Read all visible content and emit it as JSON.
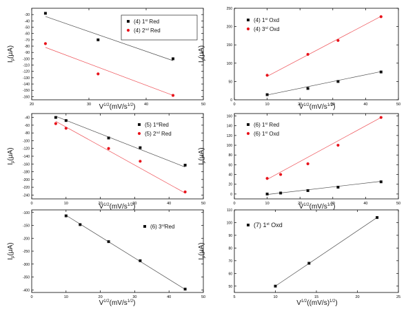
{
  "colors": {
    "series_black": "#111111",
    "series_red": "#e8141c",
    "axis": "#000000"
  },
  "chart_data": [
    {
      "type": "scatter",
      "xlabel": "V1/2(mV/s1/2)",
      "ylabel": "Ip(μA)",
      "xlabel_parts": [
        "V",
        "1/2",
        "(mV/s",
        "1/2",
        ")"
      ],
      "ylabel_parts": [
        "I",
        "p",
        "(μA)"
      ],
      "xlim": [
        20,
        50
      ],
      "ylim": [
        -165,
        -20
      ],
      "xticks": [
        20,
        30,
        40,
        50
      ],
      "yticks": [
        -30,
        -40,
        -50,
        -60,
        -70,
        -80,
        -90,
        -100,
        -110,
        -120,
        -130,
        -140,
        -150,
        -160
      ],
      "legend_position": "top-right",
      "series": [
        {
          "name": "(4) 1st Red",
          "legend_parts": [
            "(4) 1",
            "st",
            " Red"
          ],
          "marker": "square",
          "color": "#111111",
          "x": [
            22.4,
            31.6,
            44.7
          ],
          "y": [
            -28,
            -70,
            -100
          ],
          "fit": [
            -33,
            -103
          ]
        },
        {
          "name": "(4) 2nd Red",
          "legend_parts": [
            "(4) 2",
            "nd",
            " Red"
          ],
          "marker": "circle",
          "color": "#e8141c",
          "x": [
            22.4,
            31.6,
            44.7
          ],
          "y": [
            -76,
            -124,
            -158
          ],
          "fit": [
            -82,
            -158
          ]
        }
      ]
    },
    {
      "type": "scatter",
      "xlabel": "V1/2(mV/s1/2)",
      "ylabel": "Ip(μA)",
      "xlabel_parts": [
        "V",
        "1/2",
        "(mV/s",
        "1/2",
        ")"
      ],
      "ylabel_parts": [
        "I",
        "p",
        "(μA)"
      ],
      "xlim": [
        0,
        50
      ],
      "ylim": [
        0,
        250
      ],
      "xticks": [
        0,
        10,
        20,
        30,
        40,
        50
      ],
      "yticks": [
        0,
        50,
        100,
        150,
        200,
        250
      ],
      "legend_position": "top-left",
      "series": [
        {
          "name": "(4) 1st Oxd",
          "legend_parts": [
            "(4)  1",
            "st",
            " Oxd"
          ],
          "marker": "square",
          "color": "#111111",
          "x": [
            10,
            22.4,
            31.6,
            44.7
          ],
          "y": [
            14,
            31,
            50,
            76
          ],
          "fit": [
            13,
            77
          ]
        },
        {
          "name": "(4) 3rd Oxd",
          "legend_parts": [
            "(4)  3",
            "rd",
            " Oxd"
          ],
          "marker": "circle",
          "color": "#e8141c",
          "x": [
            10,
            22.4,
            31.6,
            44.7
          ],
          "y": [
            67,
            124,
            162,
            227
          ],
          "fit": [
            64,
            228
          ]
        }
      ]
    },
    {
      "type": "scatter",
      "xlabel": "V1/2(mV/s1/2)",
      "ylabel": "Ip(μA)",
      "xlabel_parts": [
        "V",
        "1/2",
        "(mV/s",
        "1/2",
        ")"
      ],
      "ylabel_parts": [
        "I",
        "p",
        "(μA)"
      ],
      "xlim": [
        0,
        50
      ],
      "ylim": [
        -250,
        -30
      ],
      "xticks": [
        0,
        10,
        20,
        30,
        40,
        50
      ],
      "yticks": [
        -40,
        -60,
        -80,
        -100,
        -120,
        -140,
        -160,
        -180,
        -200,
        -220,
        -240
      ],
      "legend_position": "top-right",
      "series": [
        {
          "name": "(5) 1st Red",
          "legend_parts": [
            "(5) 1",
            "st",
            "Red"
          ],
          "marker": "square",
          "color": "#111111",
          "x": [
            7,
            10,
            22.4,
            31.6,
            44.7
          ],
          "y": [
            -40,
            -48,
            -93,
            -118,
            -163
          ],
          "fit": [
            -37,
            -168
          ]
        },
        {
          "name": "(5) 2nd Red",
          "legend_parts": [
            "(5) 2",
            "nd",
            " Red"
          ],
          "marker": "circle",
          "color": "#e8141c",
          "x": [
            7,
            10,
            22.4,
            31.6,
            44.7
          ],
          "y": [
            -56,
            -68,
            -120,
            -153,
            -232
          ],
          "fit": [
            -50,
            -235
          ]
        }
      ]
    },
    {
      "type": "scatter",
      "xlabel": "V1/2(mV/s1/2)",
      "ylabel": "Ip(μA)",
      "xlabel_parts": [
        "V",
        "1/2",
        "(mV/s",
        "1/2",
        ")"
      ],
      "ylabel_parts": [
        "I",
        "p",
        "(μA)"
      ],
      "xlim": [
        0,
        50
      ],
      "ylim": [
        -10,
        165
      ],
      "xticks": [
        0,
        10,
        20,
        30,
        40,
        50
      ],
      "yticks": [
        0,
        20,
        40,
        60,
        80,
        100,
        120,
        140,
        160
      ],
      "legend_position": "top-left",
      "series": [
        {
          "name": "(6) 1st Red",
          "legend_parts": [
            "(6) 1",
            "st",
            " Red"
          ],
          "marker": "square",
          "color": "#111111",
          "x": [
            10,
            14.1,
            22.4,
            31.6,
            44.7
          ],
          "y": [
            0,
            2,
            7,
            14,
            25
          ],
          "fit": [
            -1,
            26
          ]
        },
        {
          "name": "(6) 1st Oxd",
          "legend_parts": [
            "(6) 1",
            "st",
            " Oxd"
          ],
          "marker": "circle",
          "color": "#e8141c",
          "x": [
            10,
            14.1,
            22.4,
            31.6,
            44.7
          ],
          "y": [
            32,
            40,
            62,
            100,
            157
          ],
          "fit": [
            30,
            157
          ]
        }
      ]
    },
    {
      "type": "scatter",
      "xlabel": "V1/2(mV/s1/2)",
      "ylabel": "Ip(μA)",
      "xlabel_parts": [
        "V",
        "1/2",
        "(mV/s",
        "1/2",
        ")"
      ],
      "ylabel_parts": [
        "I",
        "p",
        "(μA)"
      ],
      "xlim": [
        0,
        50
      ],
      "ylim": [
        -410,
        -90
      ],
      "xticks": [
        0,
        10,
        20,
        30,
        40,
        50
      ],
      "yticks": [
        -100,
        -150,
        -200,
        -250,
        -300,
        -350,
        -400
      ],
      "legend_position": "top-right",
      "series": [
        {
          "name": "(6) 3rd Red",
          "legend_parts": [
            "(6) 3",
            "rd",
            "Red"
          ],
          "marker": "square",
          "color": "#111111",
          "x": [
            10,
            14.1,
            22.4,
            31.6,
            44.7
          ],
          "y": [
            -113,
            -147,
            -213,
            -287,
            -397
          ],
          "fit": [
            -111,
            -398
          ]
        }
      ]
    },
    {
      "type": "scatter",
      "xlabel": "V1/2((mV/s)1/2)",
      "ylabel": "Ip(μA)",
      "xlabel_parts": [
        "V",
        "1/2",
        "((mV/s)",
        "1/2",
        ")"
      ],
      "ylabel_parts": [
        "I",
        "p",
        "(μA)"
      ],
      "xlim": [
        5,
        25
      ],
      "ylim": [
        45,
        110
      ],
      "xticks": [
        5,
        10,
        15,
        20,
        25
      ],
      "yticks": [
        50,
        60,
        70,
        80,
        90,
        100,
        110
      ],
      "legend_position": "top-left",
      "series": [
        {
          "name": "(7) 1st Oxd",
          "legend_parts": [
            "(7)  1",
            "st",
            " Oxd"
          ],
          "marker": "square",
          "color": "#111111",
          "x": [
            10,
            14.1,
            22.4
          ],
          "y": [
            50,
            68,
            104
          ],
          "fit": [
            50,
            104
          ]
        }
      ]
    }
  ]
}
